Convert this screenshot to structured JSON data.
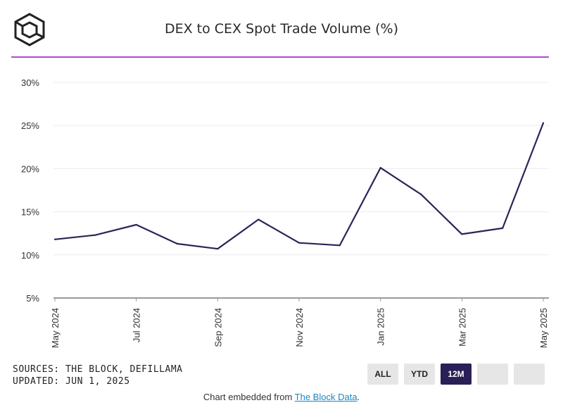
{
  "header": {
    "title": "DEX to CEX Spot Trade Volume (%)"
  },
  "colors": {
    "accent": "#b04ad6",
    "line": "#2b2457",
    "active_button": "#2b1f57",
    "link": "#1b87c6"
  },
  "footer": {
    "sources": "SOURCES: THE BLOCK, DEFILLAMA",
    "updated": "UPDATED: JUN 1, 2025",
    "embed_prefix": "Chart embedded from ",
    "embed_link": "The Block Data",
    "embed_suffix": "."
  },
  "range_buttons": [
    {
      "label": "ALL",
      "active": false
    },
    {
      "label": "YTD",
      "active": false
    },
    {
      "label": "12M",
      "active": true
    },
    {
      "label": "",
      "active": false
    },
    {
      "label": "",
      "active": false
    }
  ],
  "chart_data": {
    "type": "line",
    "title": "DEX to CEX Spot Trade Volume (%)",
    "xlabel": "",
    "ylabel": "",
    "y_ticks": [
      "5%",
      "10%",
      "15%",
      "20%",
      "25%",
      "30%"
    ],
    "ylim": [
      5,
      30
    ],
    "x_tick_labels": [
      "May 2024",
      "Jul 2024",
      "Sep 2024",
      "Nov 2024",
      "Jan 2025",
      "Mar 2025",
      "May 2025"
    ],
    "x": [
      "May 2024",
      "Jun 2024",
      "Jul 2024",
      "Aug 2024",
      "Sep 2024",
      "Oct 2024",
      "Nov 2024",
      "Dec 2024",
      "Jan 2025",
      "Feb 2025",
      "Mar 2025",
      "Apr 2025",
      "May 2025"
    ],
    "series": [
      {
        "values": [
          11.8,
          12.3,
          13.5,
          11.3,
          10.7,
          14.1,
          11.4,
          11.1,
          20.1,
          17.0,
          12.4,
          13.1,
          25.3
        ]
      }
    ],
    "grid": true,
    "legend": "none"
  }
}
